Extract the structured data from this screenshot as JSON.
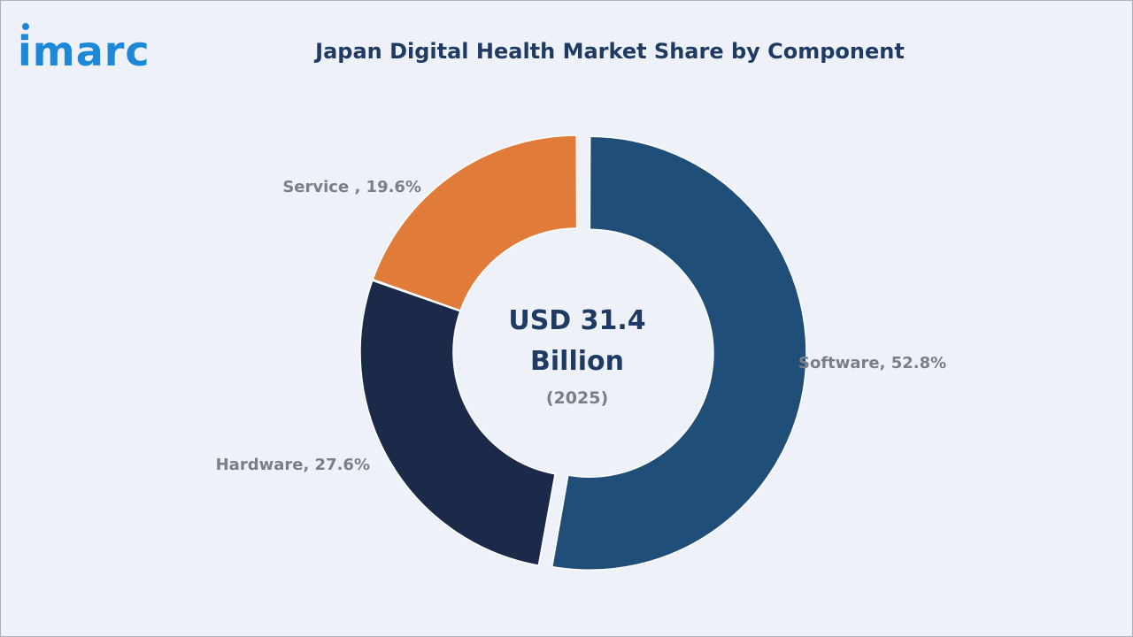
{
  "brand": {
    "logo_text": "imarc",
    "logo_color": "#1e88d8"
  },
  "chart_data": {
    "type": "pie",
    "title": "Japan Digital Health Market Share by Component",
    "center_label_line1": "USD 31.4",
    "center_label_line2": "Billion",
    "center_label_year": "(2025)",
    "slices": [
      {
        "name": "Software",
        "value": 52.8,
        "label": "Software, 52.8%",
        "color": "#1f4e79",
        "exploded": true
      },
      {
        "name": "Hardware",
        "value": 27.6,
        "label": "Hardware, 27.6%",
        "color": "#1c2a4a",
        "exploded": false
      },
      {
        "name": "Service",
        "value": 19.6,
        "label": "Service , 19.6%",
        "color": "#e07b39",
        "exploded": false
      }
    ],
    "legend": "none"
  }
}
